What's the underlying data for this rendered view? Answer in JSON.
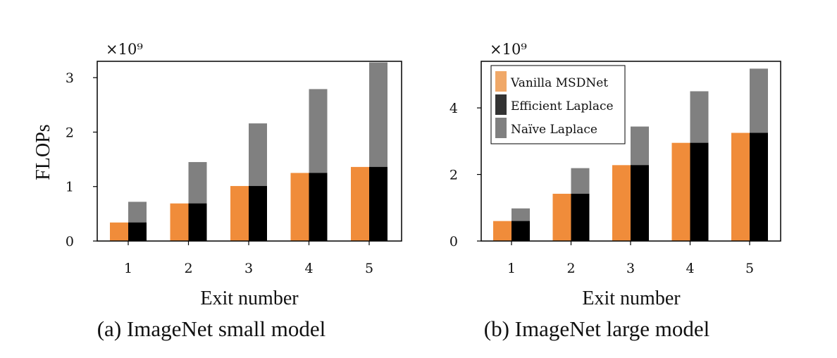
{
  "figure": {
    "ylabel": "FLOPs",
    "legend": [
      {
        "label": "Vanilla MSDNet",
        "color": "#f0a868"
      },
      {
        "label": "Efficient Laplace",
        "color": "#333333"
      },
      {
        "label": "Naïve Laplace",
        "color": "#808080"
      }
    ]
  },
  "chart_data": [
    {
      "type": "bar",
      "caption": "(a) ImageNet small model",
      "xlabel": "Exit number",
      "ylabel": "FLOPs",
      "multiplier": "×10⁹",
      "categories": [
        "1",
        "2",
        "3",
        "4",
        "5"
      ],
      "yticks": [
        0,
        1,
        2,
        3
      ],
      "ylim": [
        0,
        3.3
      ],
      "series": [
        {
          "name": "Vanilla MSDNet",
          "values": [
            0.34,
            0.69,
            1.01,
            1.25,
            1.36
          ],
          "color": "#f08c3a"
        },
        {
          "name": "Efficient Laplace",
          "values": [
            0.34,
            0.69,
            1.01,
            1.25,
            1.36
          ],
          "color": "#000000"
        },
        {
          "name": "Naïve Laplace",
          "values": [
            0.72,
            1.45,
            2.16,
            2.79,
            3.28
          ],
          "color": "#808080"
        }
      ]
    },
    {
      "type": "bar",
      "caption": "(b) ImageNet large model",
      "xlabel": "Exit number",
      "ylabel": "",
      "multiplier": "×10⁹",
      "categories": [
        "1",
        "2",
        "3",
        "4",
        "5"
      ],
      "yticks": [
        0,
        2,
        4
      ],
      "ylim": [
        0,
        5.4
      ],
      "legend": "top-left",
      "series": [
        {
          "name": "Vanilla MSDNet",
          "values": [
            0.6,
            1.42,
            2.28,
            2.95,
            3.25
          ],
          "color": "#f08c3a"
        },
        {
          "name": "Efficient Laplace",
          "values": [
            0.6,
            1.42,
            2.28,
            2.95,
            3.25
          ],
          "color": "#000000"
        },
        {
          "name": "Naïve Laplace",
          "values": [
            0.98,
            2.19,
            3.44,
            4.5,
            5.18
          ],
          "color": "#808080"
        }
      ]
    }
  ]
}
